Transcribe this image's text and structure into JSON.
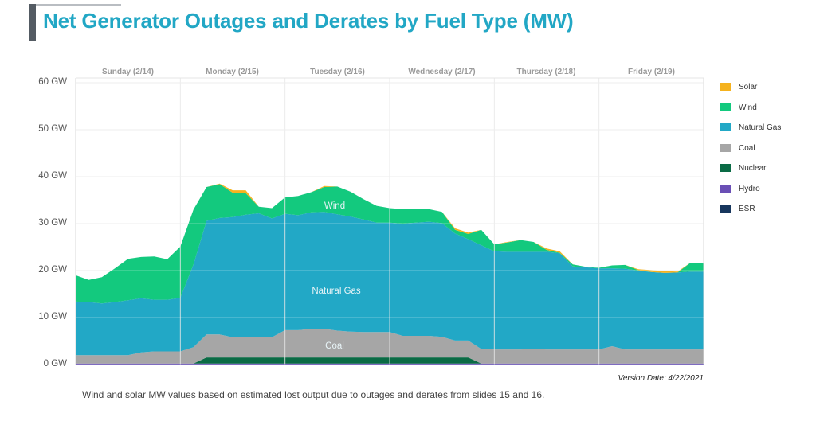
{
  "chart_data": {
    "type": "area",
    "stacked": true,
    "title": "Net Generator Outages and Derates by Fuel Type (MW)",
    "xlabel": "",
    "ylabel": "",
    "x_unit": "hours since Sunday 2/14 00:00",
    "xlim": [
      0,
      144
    ],
    "ylim": [
      0,
      60
    ],
    "y_ticks": [
      0,
      10,
      20,
      30,
      40,
      50,
      60
    ],
    "y_tick_labels": [
      "0 GW",
      "10 GW",
      "20 GW",
      "30 GW",
      "40 GW",
      "50 GW",
      "60 GW"
    ],
    "day_labels": [
      "Sunday (2/14)",
      "Monday (2/15)",
      "Tuesday (2/16)",
      "Wednesday (2/17)",
      "Thursday (2/18)",
      "Friday (2/19)"
    ],
    "grid": true,
    "legend_position": "right",
    "area_labels": {
      "wind": "Wind",
      "gas": "Natural Gas",
      "coal": "Coal"
    },
    "x": [
      0,
      3,
      6,
      9,
      12,
      15,
      18,
      21,
      24,
      27,
      30,
      33,
      36,
      39,
      42,
      45,
      48,
      51,
      54,
      57,
      60,
      63,
      66,
      69,
      72,
      75,
      78,
      81,
      84,
      87,
      90,
      93,
      96,
      99,
      102,
      105,
      108,
      111,
      114,
      117,
      120,
      123,
      126,
      129,
      132,
      135,
      138,
      141,
      144
    ],
    "series": [
      {
        "name": "ESR",
        "color": "#17365d",
        "values": [
          0,
          0,
          0,
          0,
          0,
          0,
          0,
          0,
          0,
          0,
          0,
          0,
          0,
          0,
          0,
          0,
          0,
          0,
          0,
          0,
          0,
          0,
          0,
          0,
          0,
          0,
          0,
          0,
          0,
          0,
          0,
          0,
          0,
          0,
          0,
          0,
          0,
          0,
          0,
          0,
          0,
          0,
          0,
          0,
          0,
          0,
          0,
          0,
          0
        ]
      },
      {
        "name": "Hydro",
        "color": "#6a4fb5",
        "values": [
          0.2,
          0.2,
          0.2,
          0.2,
          0.2,
          0.2,
          0.2,
          0.2,
          0.2,
          0.2,
          0.2,
          0.2,
          0.2,
          0.2,
          0.2,
          0.2,
          0.2,
          0.2,
          0.2,
          0.2,
          0.2,
          0.2,
          0.2,
          0.2,
          0.2,
          0.2,
          0.2,
          0.2,
          0.2,
          0.2,
          0.2,
          0.2,
          0.2,
          0.2,
          0.2,
          0.2,
          0.2,
          0.2,
          0.2,
          0.2,
          0.2,
          0.2,
          0.2,
          0.2,
          0.2,
          0.2,
          0.2,
          0.2,
          0.2
        ]
      },
      {
        "name": "Nuclear",
        "color": "#0a6b45",
        "values": [
          0,
          0,
          0,
          0,
          0,
          0,
          0,
          0,
          0,
          0,
          1.3,
          1.3,
          1.3,
          1.3,
          1.3,
          1.3,
          1.3,
          1.3,
          1.3,
          1.3,
          1.3,
          1.3,
          1.3,
          1.3,
          1.3,
          1.3,
          1.3,
          1.3,
          1.3,
          1.3,
          1.3,
          0,
          0,
          0,
          0,
          0,
          0,
          0,
          0,
          0,
          0,
          0,
          0,
          0,
          0,
          0,
          0,
          0,
          0
        ]
      },
      {
        "name": "Coal",
        "color": "#a6a6a6",
        "values": [
          1.8,
          1.8,
          1.8,
          1.8,
          1.8,
          2.4,
          2.6,
          2.6,
          2.6,
          3.5,
          4.9,
          4.9,
          4.3,
          4.3,
          4.3,
          4.3,
          5.8,
          5.8,
          6.1,
          6.1,
          5.7,
          5.5,
          5.4,
          5.4,
          5.4,
          4.6,
          4.6,
          4.6,
          4.4,
          3.6,
          3.6,
          3.1,
          3.0,
          3.0,
          3.0,
          3.1,
          3.0,
          3.0,
          3.0,
          3.0,
          3.0,
          3.7,
          3.0,
          3.0,
          3.0,
          3.0,
          3.0,
          3.0,
          3.0
        ]
      },
      {
        "name": "Natural Gas",
        "color": "#22a8c6",
        "values": [
          11.4,
          11.3,
          11.0,
          11.3,
          11.7,
          11.5,
          11.0,
          11.0,
          11.4,
          17.6,
          24.2,
          24.8,
          25.6,
          26.1,
          26.4,
          25.3,
          24.8,
          24.5,
          24.8,
          24.9,
          24.8,
          24.5,
          24.0,
          23.3,
          23.3,
          23.9,
          24.1,
          24.3,
          24.2,
          22.8,
          21.6,
          22.1,
          20.9,
          20.8,
          20.8,
          20.7,
          20.8,
          20.5,
          17.7,
          17.5,
          17.3,
          16.6,
          17.2,
          16.8,
          16.5,
          16.3,
          16.4,
          16.6,
          16.6
        ]
      },
      {
        "name": "Wind",
        "color": "#13c97e",
        "values": [
          5.6,
          4.7,
          5.6,
          7.2,
          8.8,
          8.8,
          9.2,
          8.6,
          10.9,
          11.7,
          7.2,
          7.2,
          5.2,
          4.6,
          1.4,
          2.2,
          3.5,
          4.1,
          4.3,
          5.3,
          5.9,
          5.3,
          4.3,
          3.6,
          3.1,
          3.1,
          3.0,
          2.7,
          2.4,
          0.8,
          1.1,
          3.3,
          1.5,
          2.0,
          2.5,
          2.1,
          0.4,
          0.1,
          0.4,
          0.1,
          0.1,
          0.6,
          0.8,
          0.1,
          0,
          0,
          0,
          1.9,
          1.7
        ]
      },
      {
        "name": "Solar",
        "color": "#f5b21e",
        "values": [
          0,
          0,
          0,
          0,
          0,
          0,
          0,
          0,
          0,
          0,
          0,
          0.1,
          0.5,
          0.6,
          0,
          0,
          0,
          0,
          0,
          0.2,
          0,
          0,
          0,
          0,
          0,
          0,
          0,
          0,
          0,
          0.3,
          0.3,
          0,
          0,
          0.1,
          0,
          0,
          0.3,
          0.3,
          0,
          0,
          0,
          0,
          0,
          0.2,
          0.4,
          0.4,
          0.2,
          0,
          0
        ]
      }
    ]
  },
  "legend": [
    {
      "label": "Solar",
      "color": "#f5b21e"
    },
    {
      "label": "Wind",
      "color": "#13c97e"
    },
    {
      "label": "Natural Gas",
      "color": "#22a8c6"
    },
    {
      "label": "Coal",
      "color": "#a6a6a6"
    },
    {
      "label": "Nuclear",
      "color": "#0a6b45"
    },
    {
      "label": "Hydro",
      "color": "#6a4fb5"
    },
    {
      "label": "ESR",
      "color": "#17365d"
    }
  ],
  "version_date": "Version Date: 4/22/2021",
  "footnote": "Wind and solar MW values based on estimated lost output due to outages and derates from slides 15 and 16."
}
